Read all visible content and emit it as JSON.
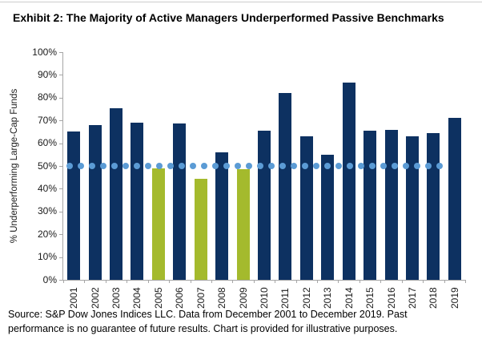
{
  "page": {
    "title": "Exhibit 2: The Majority of Active Managers Underperformed Passive Benchmarks",
    "source_note_lines": [
      "Source: S&P Dow Jones Indices LLC.  Data from December 2001 to December 2019.  Past",
      "performance is no guarantee of future results.  Chart is provided for illustrative purposes."
    ]
  },
  "colors": {
    "bar_above_benchmark": "#0d3161",
    "bar_below_benchmark": "#a4ba2d",
    "benchmark_dot": "#5b9bd5",
    "axis": "#a6a6a6"
  },
  "chart_data": {
    "type": "bar",
    "title": "Exhibit 2: The Majority of Active Managers Underperformed Passive Benchmarks",
    "xlabel": "",
    "ylabel": "% Underperforming Large-Cap Funds",
    "categories": [
      "2001",
      "2002",
      "2003",
      "2004",
      "2005",
      "2006",
      "2007",
      "2008",
      "2009",
      "2010",
      "2011",
      "2012",
      "2013",
      "2014",
      "2015",
      "2016",
      "2017",
      "2018",
      "2019"
    ],
    "values": [
      65,
      68,
      75.5,
      69,
      49,
      68.5,
      44.5,
      56,
      48.5,
      65.5,
      82,
      63,
      55,
      86.5,
      65.5,
      66,
      63,
      64.5,
      71
    ],
    "ylim": [
      0,
      100
    ],
    "ytick_step": 10,
    "ytick_format": "percent",
    "grid": false,
    "legend": false,
    "benchmark_line": {
      "value": 50,
      "style": "dotted",
      "color": "#5b9bd5"
    },
    "bar_color_above_benchmark": "#0d3161",
    "bar_color_below_benchmark": "#a4ba2d"
  }
}
